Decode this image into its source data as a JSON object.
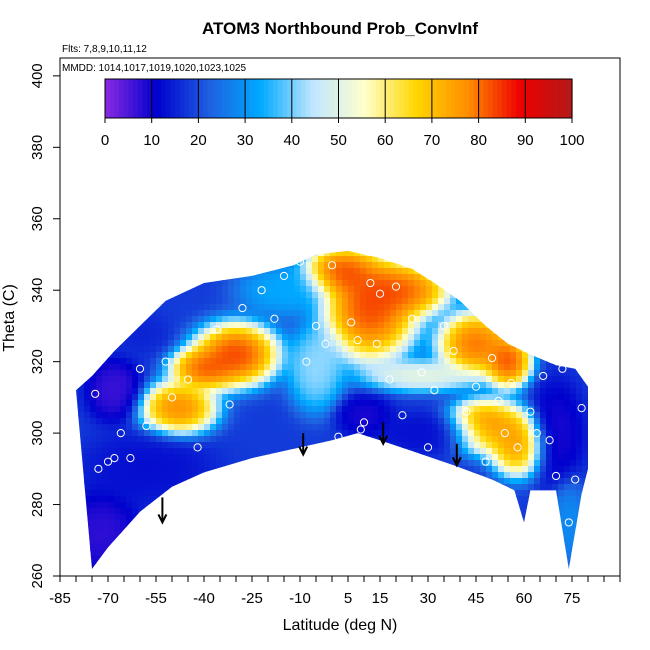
{
  "chart_data": {
    "type": "heatmap",
    "title": "ATOM3 Northbound Prob_ConvInf",
    "notes": {
      "flights": "Flts: 7,8,9,10,11,12",
      "dates": "MMDD: 1014,1017,1019,1020,1023,1025"
    },
    "xlabel": "Latitude (deg N)",
    "ylabel": "Theta (C)",
    "xlim": [
      -85,
      90
    ],
    "ylim": [
      260,
      405
    ],
    "x_ticks": [
      -85,
      -70,
      -55,
      -40,
      -25,
      -10,
      5,
      15,
      30,
      45,
      60,
      75
    ],
    "y_ticks": [
      260,
      280,
      300,
      320,
      340,
      360,
      380,
      400
    ],
    "colorbar": {
      "ticks": [
        0,
        10,
        20,
        30,
        40,
        50,
        60,
        70,
        80,
        90,
        100
      ],
      "colors": [
        "#8a2be2",
        "#0000cd",
        "#1e5fe0",
        "#00aaff",
        "#bfe6ff",
        "#ffffcc",
        "#ffd700",
        "#ff8c00",
        "#ee0000",
        "#b21a1a"
      ]
    },
    "envelope": {
      "lower": [
        [
          -75,
          262
        ],
        [
          -70,
          268
        ],
        [
          -60,
          278
        ],
        [
          -50,
          285
        ],
        [
          -40,
          289
        ],
        [
          -25,
          293
        ],
        [
          -10,
          296
        ],
        [
          0,
          298
        ],
        [
          8,
          300
        ],
        [
          15,
          298
        ],
        [
          25,
          295
        ],
        [
          38,
          291
        ],
        [
          50,
          287
        ],
        [
          57,
          284
        ],
        [
          60,
          275
        ],
        [
          62,
          284
        ],
        [
          70,
          284
        ],
        [
          74,
          262
        ],
        [
          78,
          283
        ],
        [
          80,
          290
        ]
      ],
      "upper": [
        [
          -80,
          312
        ],
        [
          -75,
          316
        ],
        [
          -68,
          323
        ],
        [
          -60,
          330
        ],
        [
          -52,
          337
        ],
        [
          -40,
          342
        ],
        [
          -25,
          344
        ],
        [
          -12,
          347
        ],
        [
          -5,
          350
        ],
        [
          5,
          351
        ],
        [
          15,
          349
        ],
        [
          25,
          346
        ],
        [
          32,
          342
        ],
        [
          40,
          337
        ],
        [
          48,
          330
        ],
        [
          55,
          325
        ],
        [
          62,
          322
        ],
        [
          70,
          319
        ],
        [
          76,
          318
        ],
        [
          80,
          313
        ]
      ]
    },
    "fields": [
      {
        "x": -30,
        "y": 322,
        "value": 92,
        "spread": [
          9,
          6
        ]
      },
      {
        "x": -48,
        "y": 307,
        "value": 85,
        "spread": [
          8,
          5
        ]
      },
      {
        "x": -40,
        "y": 318,
        "value": 88,
        "spread": [
          7,
          4
        ]
      },
      {
        "x": 12,
        "y": 335,
        "value": 92,
        "spread": [
          10,
          10
        ]
      },
      {
        "x": 3,
        "y": 345,
        "value": 90,
        "spread": [
          8,
          5
        ]
      },
      {
        "x": 22,
        "y": 340,
        "value": 88,
        "spread": [
          10,
          5
        ]
      },
      {
        "x": 45,
        "y": 325,
        "value": 88,
        "spread": [
          8,
          6
        ]
      },
      {
        "x": 55,
        "y": 320,
        "value": 90,
        "spread": [
          5,
          5
        ]
      },
      {
        "x": 48,
        "y": 302,
        "value": 85,
        "spread": [
          8,
          5
        ]
      },
      {
        "x": 58,
        "y": 297,
        "value": 82,
        "spread": [
          6,
          6
        ]
      },
      {
        "x": 28,
        "y": 316,
        "value": 55,
        "spread": [
          12,
          3
        ]
      },
      {
        "x": 10,
        "y": 305,
        "value": 8,
        "spread": [
          6,
          4
        ]
      },
      {
        "x": -68,
        "y": 312,
        "value": 5,
        "spread": [
          6,
          6
        ]
      },
      {
        "x": -72,
        "y": 272,
        "value": 6,
        "spread": [
          8,
          8
        ]
      },
      {
        "x": -58,
        "y": 290,
        "value": 12,
        "spread": [
          14,
          7
        ]
      },
      {
        "x": 70,
        "y": 300,
        "value": 8,
        "spread": [
          6,
          10
        ]
      },
      {
        "x": -15,
        "y": 340,
        "value": 35,
        "spread": [
          10,
          5
        ]
      },
      {
        "x": -60,
        "y": 328,
        "value": 15,
        "spread": [
          6,
          4
        ]
      },
      {
        "x": -5,
        "y": 318,
        "value": 45,
        "spread": [
          6,
          8
        ]
      },
      {
        "x": 30,
        "y": 300,
        "value": 12,
        "spread": [
          12,
          4
        ]
      },
      {
        "x": 74,
        "y": 275,
        "value": 30,
        "spread": [
          4,
          8
        ]
      }
    ],
    "points": [
      [
        -74,
        311
      ],
      [
        -73,
        290
      ],
      [
        -70,
        292
      ],
      [
        -68,
        293
      ],
      [
        -66,
        300
      ],
      [
        -63,
        293
      ],
      [
        -60,
        318
      ],
      [
        -58,
        302
      ],
      [
        -52,
        320
      ],
      [
        -50,
        310
      ],
      [
        -45,
        315
      ],
      [
        -42,
        296
      ],
      [
        -40,
        286
      ],
      [
        -36,
        329
      ],
      [
        -32,
        308
      ],
      [
        -28,
        335
      ],
      [
        -25,
        291
      ],
      [
        -22,
        340
      ],
      [
        -18,
        332
      ],
      [
        -15,
        344
      ],
      [
        -10,
        348
      ],
      [
        -8,
        320
      ],
      [
        -5,
        330
      ],
      [
        -2,
        325
      ],
      [
        0,
        347
      ],
      [
        2,
        299
      ],
      [
        6,
        331
      ],
      [
        8,
        326
      ],
      [
        9,
        301
      ],
      [
        10,
        303
      ],
      [
        12,
        342
      ],
      [
        14,
        325
      ],
      [
        15,
        339
      ],
      [
        18,
        315
      ],
      [
        20,
        341
      ],
      [
        22,
        305
      ],
      [
        25,
        332
      ],
      [
        28,
        317
      ],
      [
        30,
        296
      ],
      [
        32,
        312
      ],
      [
        35,
        330
      ],
      [
        38,
        323
      ],
      [
        40,
        340
      ],
      [
        42,
        306
      ],
      [
        45,
        313
      ],
      [
        48,
        292
      ],
      [
        50,
        321
      ],
      [
        52,
        309
      ],
      [
        54,
        300
      ],
      [
        56,
        314
      ],
      [
        58,
        296
      ],
      [
        60,
        326
      ],
      [
        62,
        306
      ],
      [
        64,
        300
      ],
      [
        66,
        316
      ],
      [
        68,
        298
      ],
      [
        70,
        288
      ],
      [
        72,
        318
      ],
      [
        74,
        275
      ],
      [
        76,
        287
      ],
      [
        78,
        307
      ]
    ],
    "arrows": [
      {
        "x": -53,
        "y_from": 282,
        "y_to": 275
      },
      {
        "x": -9,
        "y_from": 300,
        "y_to": 294
      },
      {
        "x": 16,
        "y_from": 303,
        "y_to": 297
      },
      {
        "x": 39,
        "y_from": 297,
        "y_to": 291
      }
    ]
  }
}
